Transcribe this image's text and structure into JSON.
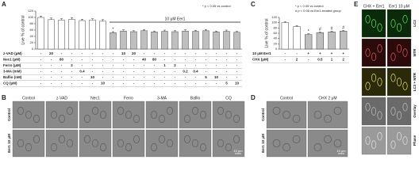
{
  "panel_letters": [
    "A",
    "B",
    "C",
    "D",
    "E"
  ],
  "chart_data": [
    {
      "type": "bar",
      "y_label": "Live % of control",
      "values": [
        100,
        93,
        92,
        94,
        90,
        92,
        88,
        52,
        57,
        55,
        58,
        54,
        56,
        55,
        57,
        56,
        58,
        54,
        56,
        53
      ],
      "errors": [
        4,
        5,
        4,
        5,
        4,
        4,
        5,
        3,
        4,
        3,
        4,
        3,
        4,
        3,
        4,
        3,
        4,
        3,
        4,
        3
      ],
      "colors": [
        "#ffffff",
        "#ffffff",
        "#ffffff",
        "#ffffff",
        "#ffffff",
        "#ffffff",
        "#ffffff",
        "#bfbfbf",
        "#bfbfbf",
        "#bfbfbf",
        "#bfbfbf",
        "#bfbfbf",
        "#bfbfbf",
        "#bfbfbf",
        "#bfbfbf",
        "#bfbfbf",
        "#bfbfbf",
        "#bfbfbf",
        "#bfbfbf",
        "#bfbfbf"
      ],
      "sig_labels": [
        null,
        null,
        null,
        null,
        null,
        null,
        null,
        "*",
        null,
        null,
        null,
        null,
        null,
        null,
        null,
        null,
        null,
        null,
        null,
        null
      ],
      "bracket_label": "10 μM Eer1",
      "annotations": [
        "* p < 0.05 vs control"
      ],
      "ylim": [
        0,
        120
      ],
      "yticks": [
        0,
        20,
        40,
        60,
        80,
        100,
        120
      ],
      "table": [
        {
          "label": "z-VAD (μM)",
          "cells": [
            "-",
            "20",
            "-",
            "-",
            "-",
            "-",
            "-",
            "-",
            "10",
            "20",
            "-",
            "-",
            "-",
            "-",
            "-",
            "-",
            "-",
            "-",
            "-",
            "-"
          ]
        },
        {
          "label": "Nec1 (μM)",
          "cells": [
            "-",
            "-",
            "80",
            "-",
            "-",
            "-",
            "-",
            "-",
            "-",
            "-",
            "40",
            "80",
            "-",
            "-",
            "-",
            "-",
            "-",
            "-",
            "-",
            "-"
          ]
        },
        {
          "label": "Ferro (μM)",
          "cells": [
            "-",
            "-",
            "-",
            "2",
            "-",
            "-",
            "-",
            "-",
            "-",
            "-",
            "-",
            "-",
            "1",
            "2",
            "-",
            "-",
            "-",
            "-",
            "-",
            "-"
          ]
        },
        {
          "label": "3-MA (mM)",
          "cells": [
            "-",
            "-",
            "-",
            "-",
            "0.4",
            "-",
            "-",
            "-",
            "-",
            "-",
            "-",
            "-",
            "-",
            "-",
            "0.2",
            "0.4",
            "-",
            "-",
            "-",
            "-"
          ]
        },
        {
          "label": "Baflio (nM)",
          "cells": [
            "-",
            "-",
            "-",
            "-",
            "-",
            "10",
            "-",
            "-",
            "-",
            "-",
            "-",
            "-",
            "-",
            "-",
            "-",
            "-",
            "5",
            "10",
            "-",
            "-"
          ]
        },
        {
          "label": "CQ (μM)",
          "cells": [
            "-",
            "-",
            "-",
            "-",
            "-",
            "-",
            "10",
            "-",
            "-",
            "-",
            "-",
            "-",
            "-",
            "-",
            "-",
            "-",
            "-",
            "-",
            "5",
            "10"
          ]
        }
      ]
    },
    {
      "type": "bar",
      "y_label": "Live % of control",
      "values": [
        100,
        85,
        55,
        62,
        65,
        68
      ],
      "errors": [
        4,
        4,
        3,
        3,
        3,
        3
      ],
      "colors": [
        "#ffffff",
        "#ffffff",
        "#bfbfbf",
        "#bfbfbf",
        "#bfbfbf",
        "#bfbfbf"
      ],
      "sig_labels": [
        null,
        null,
        "*",
        "#",
        "#",
        "#"
      ],
      "annotations": [
        "* p < 0.05 vs control",
        "# p < 0.05 vs Eer1-treated group"
      ],
      "ylim": [
        0,
        120
      ],
      "yticks": [
        0,
        20,
        40,
        60,
        80,
        100,
        120
      ],
      "table": [
        {
          "label": "10 μM Eer1",
          "cells": [
            "-",
            "-",
            "+",
            "+",
            "+",
            "+"
          ]
        },
        {
          "label": "CHX (μM)",
          "cells": [
            "-",
            "2",
            "-",
            "0.5",
            "1",
            "2"
          ]
        }
      ]
    }
  ],
  "panel_b": {
    "columns": [
      "Control",
      "z-VAD",
      "Nec1",
      "Ferro",
      "3-MA",
      "Bafilo",
      "CQ"
    ],
    "rows": [
      "Control",
      "Eer1 10 μM"
    ],
    "scale": "10 μm"
  },
  "panel_d": {
    "columns": [
      "Control",
      "CHX 2 μM"
    ],
    "rows": [
      "Control",
      "Eer1 10 μM"
    ],
    "scale": "10 μm"
  },
  "panel_e": {
    "columns": [
      "CHX + Eer1",
      "Eer1 10 μM"
    ],
    "rows": [
      "LC3",
      "MTR",
      "LC3 + MTR",
      "Overlay",
      "Phase"
    ]
  }
}
